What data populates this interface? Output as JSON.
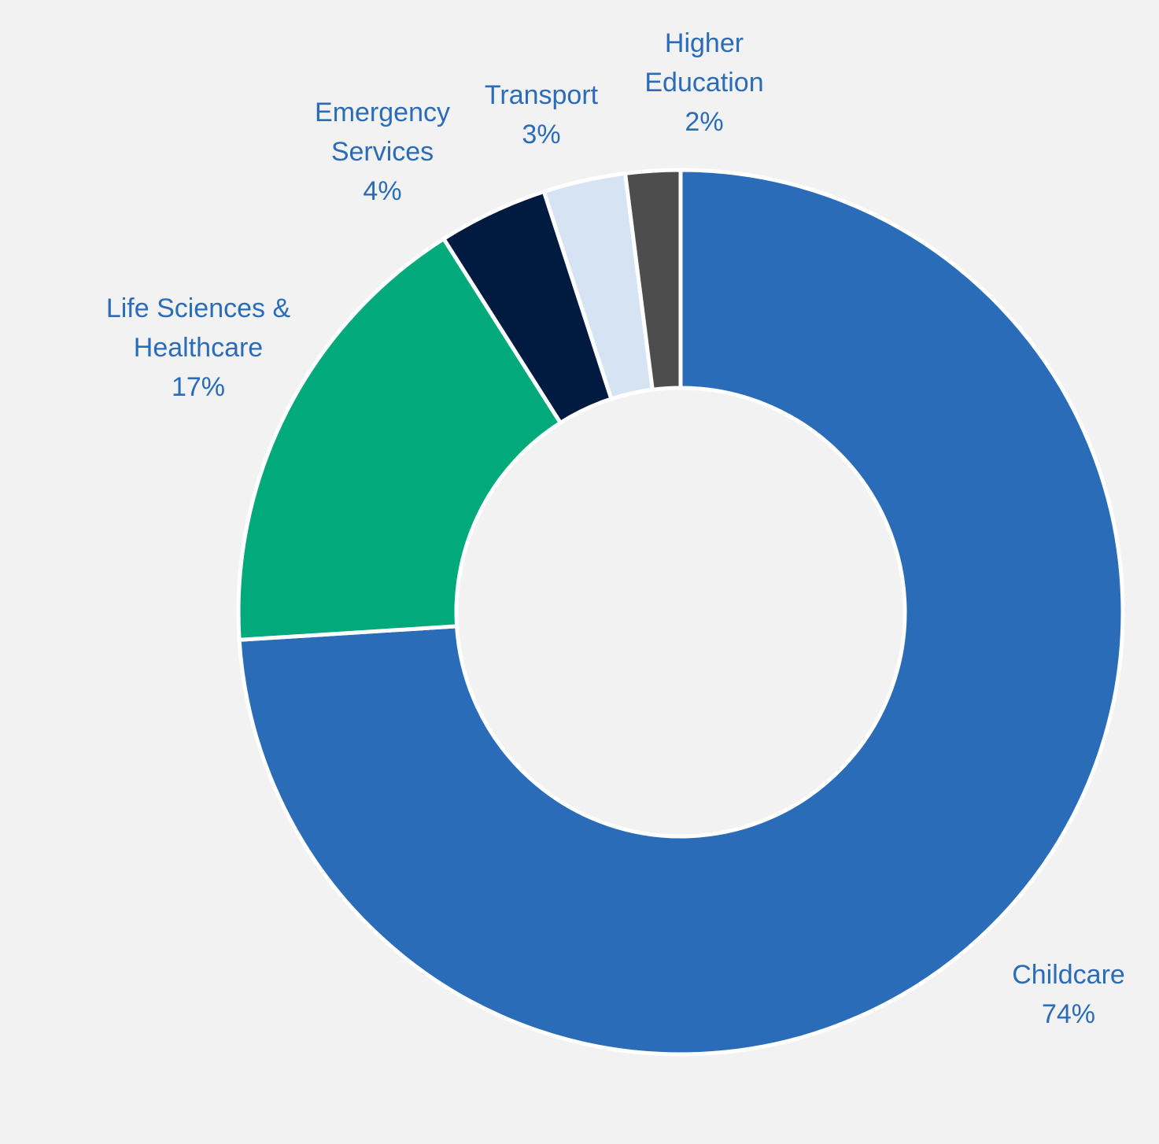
{
  "chart_data": {
    "type": "pie",
    "variant": "donut",
    "title": "",
    "series": [
      {
        "name": "Childcare",
        "label_lines": [
          "Childcare"
        ],
        "value": 74,
        "value_label": "74%",
        "color": "#2b6cb8"
      },
      {
        "name": "Life Sciences & Healthcare",
        "label_lines": [
          "Life Sciences &",
          "Healthcare"
        ],
        "value": 17,
        "value_label": "17%",
        "color": "#02a97b"
      },
      {
        "name": "Emergency Services",
        "label_lines": [
          "Emergency",
          "Services"
        ],
        "value": 4,
        "value_label": "4%",
        "color": "#011a40"
      },
      {
        "name": "Transport",
        "label_lines": [
          "Transport"
        ],
        "value": 3,
        "value_label": "3%",
        "color": "#d6e3f2"
      },
      {
        "name": "Higher Education",
        "label_lines": [
          "Higher",
          "Education"
        ],
        "value": 2,
        "value_label": "2%",
        "color": "#4d4d4d"
      }
    ],
    "label_color": "#2b6cb8",
    "slice_border_color": "#ffffff",
    "background_color": "#f2f2f2"
  }
}
